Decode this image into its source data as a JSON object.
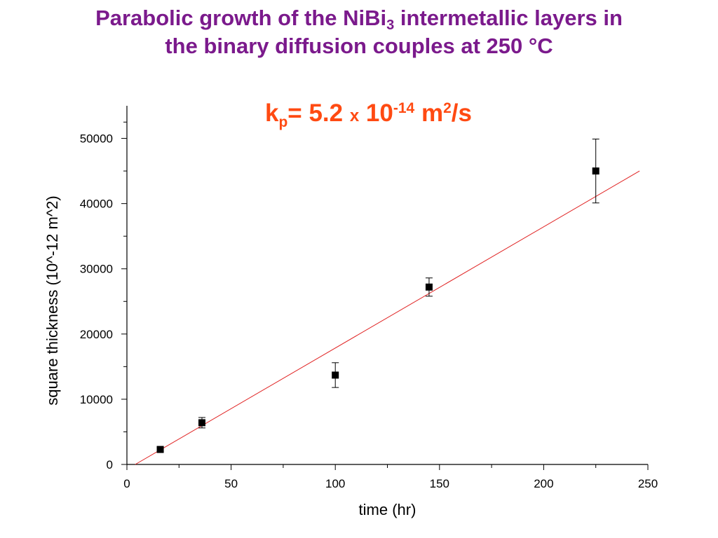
{
  "title": {
    "line1_pre": "Parabolic growth of the NiBi",
    "line1_sub": "3",
    "line1_post": " intermetallic layers in",
    "line2": "the binary diffusion couples at 250 °C"
  },
  "annotation": {
    "k": "k",
    "sub": "p",
    "mid": "= 5.2 ",
    "x": "x",
    "ten": " 10",
    "exp": "-14",
    "unit": " m",
    "unit_exp": "2",
    "unit_post": "/s"
  },
  "colors": {
    "title": "#7b1a8c",
    "annotation": "#ff4a12",
    "fit_line": "#e02020",
    "points": "#000000"
  },
  "chart_data": {
    "type": "scatter",
    "xlabel": "time (hr)",
    "ylabel": "square thickness (10^-12 m^2)",
    "xlim": [
      0,
      250
    ],
    "ylim": [
      0,
      55000
    ],
    "xticks": [
      0,
      50,
      100,
      150,
      200,
      250
    ],
    "xtick_labels": [
      "0",
      "50",
      "100",
      "150",
      "200",
      "250"
    ],
    "yticks": [
      0,
      10000,
      20000,
      30000,
      40000,
      50000
    ],
    "ytick_labels": [
      "0",
      "10000",
      "20000",
      "30000",
      "40000",
      "50000"
    ],
    "series": [
      {
        "marker": "square",
        "x": [
          16,
          36,
          100,
          145,
          225
        ],
        "y": [
          2300,
          6400,
          13700,
          27200,
          45000
        ],
        "error": [
          300,
          800,
          1900,
          1400,
          4900
        ]
      }
    ],
    "fit": {
      "x": [
        4,
        246
      ],
      "y": [
        0,
        45000
      ]
    },
    "grid": false
  }
}
